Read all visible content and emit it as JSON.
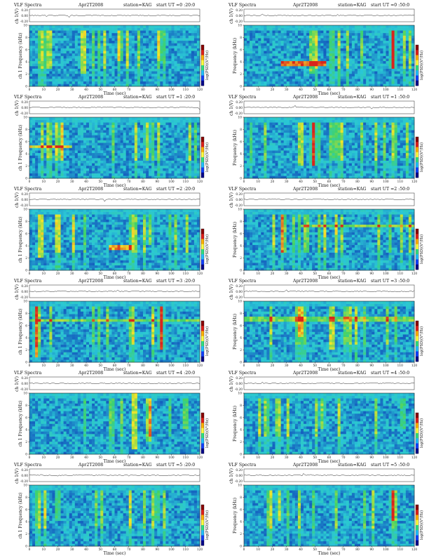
{
  "colors": {
    "background_low": "#0a2fb4",
    "mid": "#2ac7d6",
    "green": "#3fd26a",
    "high": "#f2e52b",
    "peak": "#d9231c",
    "colorbar": [
      "#8a0000",
      "#e0201a",
      "#ffb000",
      "#ffff40",
      "#30e080",
      "#20c0ff",
      "#1040ff",
      "#00008a"
    ]
  },
  "chart_data": [
    {
      "type": "heatmap",
      "title": "VLF Spectra",
      "date": "Apr2T2008",
      "station": "station=KAG",
      "start": "start  UT =0 :20:0",
      "panel_top": "ch 1(V)",
      "panel_top_ticks": [
        "0.20",
        "0.00",
        "-0.20"
      ],
      "ylabel": "ch 1 Frequency  (kHz)",
      "xlabel": "Time  (sec)",
      "colorbar_label": "log(PSD)(V²/Hz)",
      "xlim": [
        0,
        120
      ],
      "ylim": [
        0,
        10
      ],
      "x_ticks": [
        "0",
        "10",
        "20",
        "30",
        "40",
        "50",
        "60",
        "70",
        "80",
        "90",
        "100",
        "110",
        "120"
      ],
      "y_ticks": [
        "0",
        "2",
        "4",
        "6",
        "8",
        "10"
      ],
      "features": [
        {
          "kind": "burst",
          "t": 14,
          "f": [
            3,
            9
          ],
          "level": 0.9
        },
        {
          "kind": "burst",
          "t": 38,
          "f": [
            2,
            9
          ],
          "level": 1.0
        },
        {
          "kind": "burst",
          "t": 64,
          "f": [
            4,
            9
          ],
          "level": 0.6
        },
        {
          "kind": "burst",
          "t": 92,
          "f": [
            4,
            9
          ],
          "level": 0.5
        }
      ]
    },
    {
      "type": "heatmap",
      "title": "VLF Spectra",
      "date": "Apr2T2008",
      "station": "station=KAG",
      "start": "start  UT =0 :50:0",
      "panel_top": "ch 1(V)",
      "panel_top_ticks": [
        "0.20",
        "0.00",
        "-0.20"
      ],
      "ylabel": "Frequency  (kHz)",
      "xlabel": "Time  (sec)",
      "colorbar_label": "log(PSD)(V²/Hz)",
      "xlim": [
        0,
        120
      ],
      "ylim": [
        0,
        10
      ],
      "x_ticks": [
        "0",
        "10",
        "20",
        "30",
        "40",
        "50",
        "60",
        "70",
        "80",
        "90",
        "100",
        "110",
        "120"
      ],
      "y_ticks": [
        "0",
        "2",
        "4",
        "6",
        "8",
        "10"
      ],
      "features": [
        {
          "kind": "band",
          "t": [
            26,
            58
          ],
          "f": [
            3.2,
            4.0
          ],
          "level": 1.0
        },
        {
          "kind": "burst",
          "t": 48,
          "f": [
            2,
            9
          ],
          "level": 0.8
        },
        {
          "kind": "burst",
          "t": 105,
          "f": [
            3,
            9
          ],
          "level": 0.8
        }
      ]
    },
    {
      "type": "heatmap",
      "title": "VLF Spectra",
      "date": "Apr2T2008",
      "station": "station=KAG",
      "start": "start  UT =1 :20:0",
      "panel_top": "ch 1(V)",
      "panel_top_ticks": [
        "0.20",
        "0.00",
        "-0.20"
      ],
      "ylabel": "ch 1 Frequency  (kHz)",
      "xlabel": "Time  (sec)",
      "colorbar_label": "log(PSD)(V²/Hz)",
      "xlim": [
        0,
        120
      ],
      "ylim": [
        0,
        10
      ],
      "x_ticks": [
        "0",
        "10",
        "20",
        "30",
        "40",
        "50",
        "60",
        "70",
        "80",
        "90",
        "100",
        "110",
        "120"
      ],
      "y_ticks": [
        "0",
        "2",
        "4",
        "6",
        "8",
        "10"
      ],
      "features": [
        {
          "kind": "band",
          "t": [
            0,
            30
          ],
          "f": [
            4.8,
            5.4
          ],
          "level": 0.7
        },
        {
          "kind": "burst",
          "t": 22,
          "f": [
            3,
            9
          ],
          "level": 0.6
        },
        {
          "kind": "burst",
          "t": 83,
          "f": [
            3,
            9
          ],
          "level": 0.6
        }
      ]
    },
    {
      "type": "heatmap",
      "title": "VLF Spectra",
      "date": "Apr2T2008",
      "station": "station=KAG",
      "start": "start  UT =1 :50:0",
      "panel_top": "ch 1(V)",
      "panel_top_ticks": [
        "0.20",
        "0.00",
        "-0.20"
      ],
      "ylabel": "Frequency  (kHz)",
      "xlabel": "Time  (sec)",
      "colorbar_label": "log(PSD)(V²/Hz)",
      "xlim": [
        0,
        120
      ],
      "ylim": [
        0,
        10
      ],
      "x_ticks": [
        "0",
        "10",
        "20",
        "30",
        "40",
        "50",
        "60",
        "70",
        "80",
        "90",
        "100",
        "110",
        "120"
      ],
      "y_ticks": [
        "0",
        "2",
        "4",
        "6",
        "8",
        "10"
      ],
      "features": [
        {
          "kind": "burst",
          "t": 40,
          "f": [
            2,
            9
          ],
          "level": 0.9
        },
        {
          "kind": "burst",
          "t": 49,
          "f": [
            2,
            9
          ],
          "level": 1.0
        },
        {
          "kind": "burst",
          "t": 64,
          "f": [
            3,
            9
          ],
          "level": 0.6
        }
      ]
    },
    {
      "type": "heatmap",
      "title": "VLF Spectra",
      "date": "Apr2T2008",
      "station": "station=KAG",
      "start": "start  UT =2 :20:0",
      "panel_top": "ch 1(V)",
      "panel_top_ticks": [
        "0.20",
        "0.00",
        "-0.20"
      ],
      "ylabel": "ch 1 Frequency  (kHz)",
      "xlabel": "Time  (sec)",
      "colorbar_label": "log(PSD)(V²/Hz)",
      "xlim": [
        0,
        120
      ],
      "ylim": [
        0,
        10
      ],
      "x_ticks": [
        "0",
        "10",
        "20",
        "30",
        "40",
        "50",
        "60",
        "70",
        "80",
        "90",
        "100",
        "110",
        "120"
      ],
      "y_ticks": [
        "0",
        "2",
        "4",
        "6",
        "8",
        "10"
      ],
      "features": [
        {
          "kind": "burst",
          "t": 8,
          "f": [
            2,
            9
          ],
          "level": 1.0
        },
        {
          "kind": "band",
          "t": [
            56,
            72
          ],
          "f": [
            3.5,
            4.3
          ],
          "level": 0.9
        },
        {
          "kind": "burst",
          "t": 85,
          "f": [
            4,
            9
          ],
          "level": 0.5
        }
      ]
    },
    {
      "type": "heatmap",
      "title": "VLF Spectra",
      "date": "Apr2T2008",
      "station": "station=KAG",
      "start": "start  UT =2 :50:0",
      "panel_top": "ch 1(V)",
      "panel_top_ticks": [
        "0.20",
        "0.00",
        "-0.20"
      ],
      "ylabel": "Frequency  (kHz)",
      "xlabel": "Time  (sec)",
      "colorbar_label": "log(PSD)(V²/Hz)",
      "xlim": [
        0,
        120
      ],
      "ylim": [
        0,
        10
      ],
      "x_ticks": [
        "0",
        "10",
        "20",
        "30",
        "40",
        "50",
        "60",
        "70",
        "80",
        "90",
        "100",
        "110",
        "120"
      ],
      "y_ticks": [
        "0",
        "2",
        "4",
        "6",
        "8",
        "10"
      ],
      "features": [
        {
          "kind": "burst",
          "t": 28,
          "f": [
            3,
            9
          ],
          "level": 0.7
        },
        {
          "kind": "burst",
          "t": 44,
          "f": [
            3,
            9
          ],
          "level": 0.8
        },
        {
          "kind": "band",
          "t": [
            40,
            120
          ],
          "f": [
            7,
            7.6
          ],
          "level": 0.5
        }
      ]
    },
    {
      "type": "heatmap",
      "title": "VLF Spectra",
      "date": "Apr2T2008",
      "station": "station=KAG",
      "start": "start  UT =3 :20:0",
      "panel_top": "ch 1(V)",
      "panel_top_ticks": [
        "0.20",
        "0.00",
        "-0.20"
      ],
      "ylabel": "ch 1 Frequency  (kHz)",
      "xlabel": "Time  (sec)",
      "colorbar_label": "log(PSD)(V²/Hz)",
      "xlim": [
        0,
        120
      ],
      "ylim": [
        0,
        10
      ],
      "x_ticks": [
        "0",
        "10",
        "20",
        "30",
        "40",
        "50",
        "60",
        "70",
        "80",
        "90",
        "100",
        "110",
        "120"
      ],
      "y_ticks": [
        "0",
        "2",
        "4",
        "6",
        "8",
        "10"
      ],
      "features": [
        {
          "kind": "burst",
          "t": 5,
          "f": [
            1,
            9
          ],
          "level": 0.9
        },
        {
          "kind": "burst",
          "t": 93,
          "f": [
            2,
            9
          ],
          "level": 1.0
        },
        {
          "kind": "band",
          "t": [
            0,
            120
          ],
          "f": [
            6.6,
            7.2
          ],
          "level": 0.5
        }
      ]
    },
    {
      "type": "heatmap",
      "title": "VLF Spectra",
      "date": "Apr2T2008",
      "station": "station=KAG",
      "start": "start  UT =3 :50:0",
      "panel_top": "ch 1(V)",
      "panel_top_ticks": [
        "0.20",
        "0.00",
        "-0.20"
      ],
      "ylabel": "Frequency  (kHz)",
      "xlabel": "Time  (sec)",
      "colorbar_label": "log(PSD)(V²/Hz)",
      "xlim": [
        0,
        120
      ],
      "ylim": [
        0,
        10
      ],
      "x_ticks": [
        "0",
        "10",
        "20",
        "30",
        "40",
        "50",
        "60",
        "70",
        "80",
        "90",
        "100",
        "110",
        "120"
      ],
      "y_ticks": [
        "0",
        "2",
        "4",
        "6",
        "8",
        "10"
      ],
      "features": [
        {
          "kind": "burst",
          "t": 62,
          "f": [
            2,
            9
          ],
          "level": 1.0
        },
        {
          "kind": "burst",
          "t": 40,
          "f": [
            4,
            9
          ],
          "level": 0.6
        },
        {
          "kind": "band",
          "t": [
            0,
            120
          ],
          "f": [
            6.8,
            7.4
          ],
          "level": 0.5
        }
      ]
    },
    {
      "type": "heatmap",
      "title": "VLF Spectra",
      "date": "Apr2T2008",
      "station": "station=KAG",
      "start": "start  UT =4 :20:0",
      "panel_top": "ch 1(V)",
      "panel_top_ticks": [
        "0.20",
        "0.00",
        "-0.20"
      ],
      "ylabel": "ch 1 Frequency  (kHz)",
      "xlabel": "Time  (sec)",
      "colorbar_label": "log(PSD)(V²/Hz)",
      "xlim": [
        0,
        120
      ],
      "ylim": [
        0,
        10
      ],
      "x_ticks": [
        "0",
        "10",
        "20",
        "30",
        "40",
        "50",
        "60",
        "70",
        "80",
        "90",
        "100",
        "110",
        "120"
      ],
      "y_ticks": [
        "0",
        "2",
        "4",
        "6",
        "8",
        "10"
      ],
      "features": [
        {
          "kind": "burst",
          "t": 74,
          "f": [
            1,
            10
          ],
          "level": 1.0
        },
        {
          "kind": "burst",
          "t": 84,
          "f": [
            2,
            9
          ],
          "level": 0.8
        },
        {
          "kind": "burst",
          "t": 110,
          "f": [
            4,
            9
          ],
          "level": 0.6
        }
      ]
    },
    {
      "type": "heatmap",
      "title": "VLF Spectra",
      "date": "Apr2T2008",
      "station": "station=KAG",
      "start": "start  UT =4 :50:0",
      "panel_top": "ch 1(V)",
      "panel_top_ticks": [
        "0.20",
        "0.00",
        "-0.20"
      ],
      "ylabel": "Frequency  (kHz)",
      "xlabel": "Time  (sec)",
      "colorbar_label": "log(PSD)(V²/Hz)",
      "xlim": [
        0,
        120
      ],
      "ylim": [
        0,
        10
      ],
      "x_ticks": [
        "0",
        "10",
        "20",
        "30",
        "40",
        "50",
        "60",
        "70",
        "80",
        "90",
        "100",
        "110",
        "120"
      ],
      "y_ticks": [
        "0",
        "2",
        "4",
        "6",
        "8",
        "10"
      ],
      "features": [
        {
          "kind": "burst",
          "t": 55,
          "f": [
            4,
            9
          ],
          "level": 0.5
        },
        {
          "kind": "burst",
          "t": 112,
          "f": [
            4,
            9
          ],
          "level": 0.5
        }
      ]
    },
    {
      "type": "heatmap",
      "title": "VLF Spectra",
      "date": "Apr2T2008",
      "station": "station=KAG",
      "start": "start  UT =5 :20:0",
      "panel_top": "ch 1(V)",
      "panel_top_ticks": [
        "0.20",
        "0.00",
        "-0.20"
      ],
      "ylabel": "ch 1 Frequency  (kHz)",
      "xlabel": "Time  (sec)",
      "colorbar_label": "log(PSD)(V²/Hz)",
      "xlim": [
        0,
        120
      ],
      "ylim": [
        0,
        10
      ],
      "x_ticks": [
        "0",
        "10",
        "20",
        "30",
        "40",
        "50",
        "60",
        "70",
        "80",
        "90",
        "100",
        "110",
        "120"
      ],
      "y_ticks": [
        "0",
        "2",
        "4",
        "6",
        "8",
        "10"
      ],
      "features": [
        {
          "kind": "burst",
          "t": 20,
          "f": [
            4,
            9
          ],
          "level": 0.5
        },
        {
          "kind": "burst",
          "t": 90,
          "f": [
            4,
            9
          ],
          "level": 0.5
        }
      ]
    },
    {
      "type": "heatmap",
      "title": "VLF Spectra",
      "date": "Apr2T2008",
      "station": "station=KAG",
      "start": "start  UT =5 :50:0",
      "panel_top": "ch 1(V)",
      "panel_top_ticks": [
        "0.20",
        "0.00",
        "-0.20"
      ],
      "ylabel": "Frequency  (kHz)",
      "xlabel": "Time  (sec)",
      "colorbar_label": "log(PSD)(V²/Hz)",
      "xlim": [
        0,
        120
      ],
      "ylim": [
        0,
        10
      ],
      "x_ticks": [
        "0",
        "10",
        "20",
        "30",
        "40",
        "50",
        "60",
        "70",
        "80",
        "90",
        "100",
        "110",
        "120"
      ],
      "y_ticks": [
        "0",
        "2",
        "4",
        "6",
        "8",
        "10"
      ],
      "features": [
        {
          "kind": "burst",
          "t": 25,
          "f": [
            4,
            9
          ],
          "level": 0.6
        },
        {
          "kind": "burst",
          "t": 105,
          "f": [
            4,
            9
          ],
          "level": 0.6
        }
      ]
    }
  ]
}
